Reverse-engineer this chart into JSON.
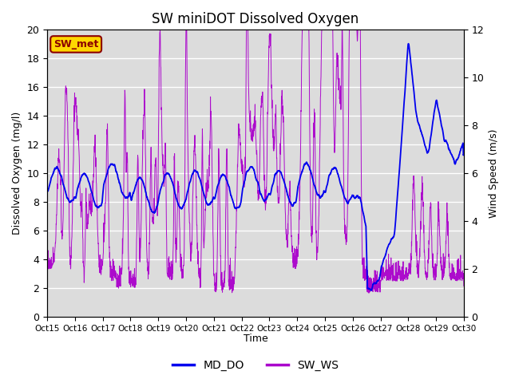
{
  "title": "SW miniDOT Dissolved Oxygen",
  "ylabel_left": "Dissolved Oxygen (mg/l)",
  "ylabel_right": "Wind Speed (m/s)",
  "xlabel": "Time",
  "xlim": [
    0,
    15
  ],
  "ylim_left": [
    0,
    20
  ],
  "ylim_right": [
    0,
    12
  ],
  "xtick_labels": [
    "Oct 15",
    "Oct 16",
    "Oct 17",
    "Oct 18",
    "Oct 19",
    "Oct 20",
    "Oct 21",
    "Oct 22",
    "Oct 23",
    "Oct 24",
    "Oct 25",
    "Oct 26",
    "Oct 27",
    "Oct 28",
    "Oct 29",
    "Oct 30"
  ],
  "annotation_text": "SW_met",
  "annotation_color": "#8B0000",
  "annotation_bg": "#FFD700",
  "line_md_do_color": "#0000EE",
  "line_sw_ws_color": "#AA00CC",
  "legend_labels": [
    "MD_DO",
    "SW_WS"
  ],
  "bg_color": "#DCDCDC",
  "grid_color": "white"
}
